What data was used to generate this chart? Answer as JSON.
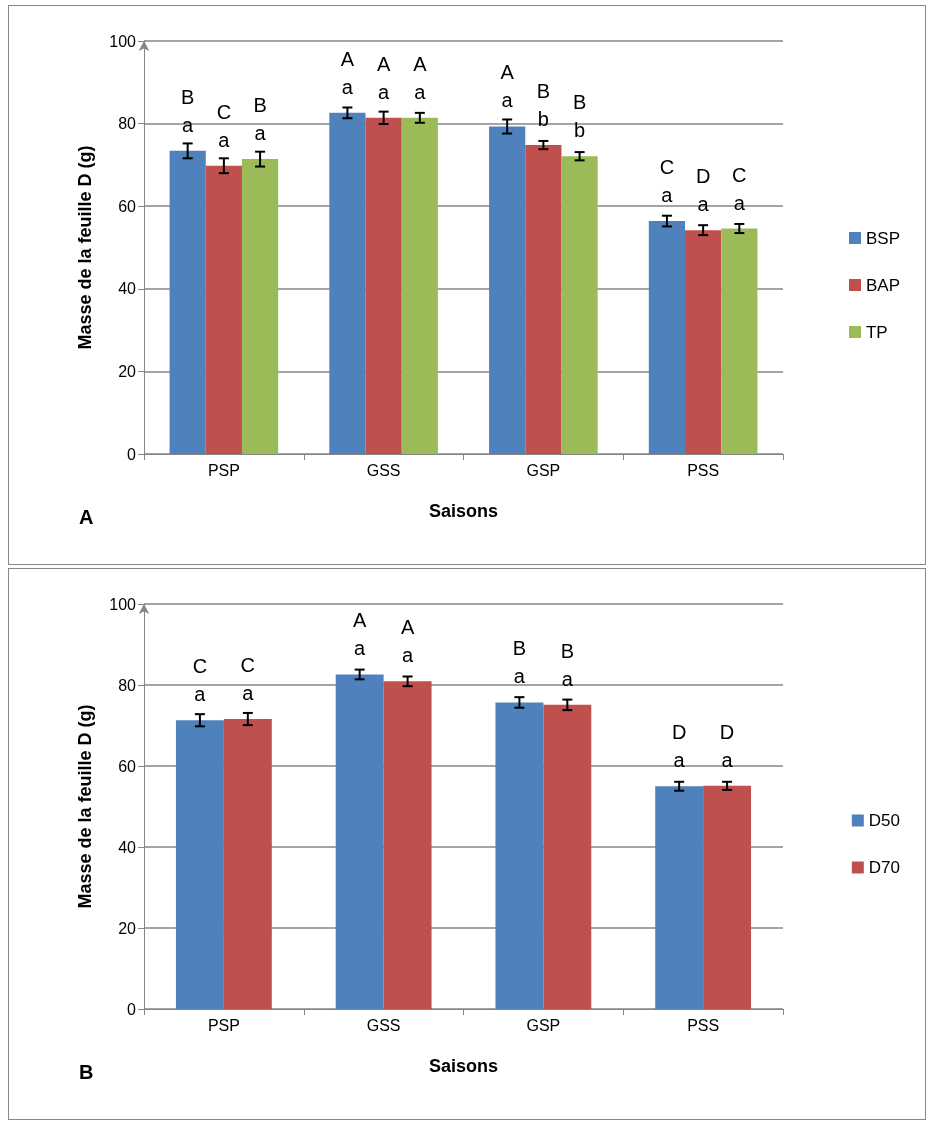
{
  "chart_data": [
    {
      "type": "bar",
      "categories": [
        "PSP",
        "GSS",
        "GSP",
        "PSS"
      ],
      "xlabel": "Saisons",
      "ylabel": "Masse de la feuille D (g)",
      "annotations": [
        "A"
      ],
      "series": [
        {
          "name": "BSP",
          "color": "#4f81bd",
          "values": [
            73.4,
            82.6,
            79.3,
            56.4
          ],
          "errors": [
            1.8,
            1.3,
            1.7,
            1.3
          ],
          "value_labels": [
            "B\na",
            "A\na",
            "A\na",
            "C\na"
          ]
        },
        {
          "name": "BAP",
          "color": "#c0504d",
          "values": [
            69.8,
            81.4,
            74.8,
            54.2
          ],
          "errors": [
            1.8,
            1.5,
            1.0,
            1.2
          ],
          "value_labels": [
            "C\na",
            "A\na",
            "B\nb",
            "D\na"
          ]
        },
        {
          "name": "TP",
          "color": "#9bbb59",
          "values": [
            71.4,
            81.4,
            72.1,
            54.6
          ],
          "errors": [
            1.8,
            1.2,
            1.0,
            1.1
          ],
          "value_labels": [
            "B\na",
            "A\na",
            "B\nb",
            "C\na"
          ]
        }
      ],
      "ylim": [
        0,
        100
      ],
      "yticks": [
        0,
        20,
        40,
        60,
        80,
        100
      ],
      "grid": "y",
      "legend": "right"
    },
    {
      "type": "bar",
      "categories": [
        "PSP",
        "GSS",
        "GSP",
        "PSS"
      ],
      "xlabel": "Saisons",
      "ylabel": "Masse de la feuille D (g)",
      "annotations": [
        "B"
      ],
      "series": [
        {
          "name": "D50",
          "color": "#4f81bd",
          "values": [
            71.3,
            82.6,
            75.7,
            55.0
          ],
          "errors": [
            1.5,
            1.2,
            1.3,
            1.1
          ],
          "value_labels": [
            "C\na",
            "A\na",
            "B\na",
            "D\na"
          ]
        },
        {
          "name": "D70",
          "color": "#c0504d",
          "values": [
            71.6,
            80.9,
            75.1,
            55.1
          ],
          "errors": [
            1.5,
            1.2,
            1.3,
            1.0
          ],
          "value_labels": [
            "C\na",
            "A\na",
            "B\na",
            "D\na"
          ]
        }
      ],
      "ylim": [
        0,
        100
      ],
      "yticks": [
        0,
        20,
        40,
        60,
        80,
        100
      ],
      "grid": "y",
      "legend": "right"
    }
  ]
}
